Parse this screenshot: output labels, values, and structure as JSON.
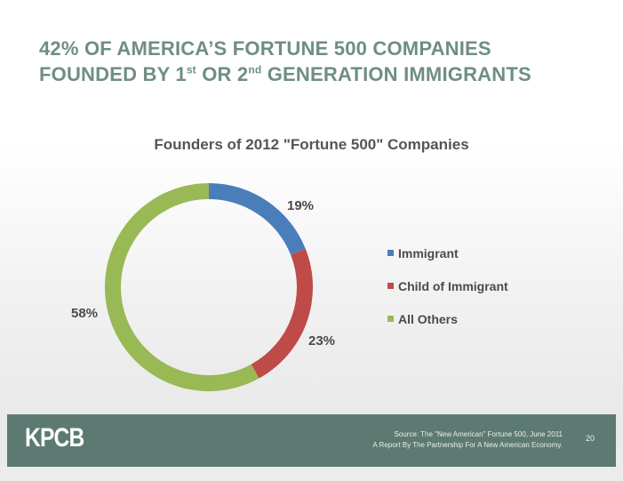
{
  "headline": {
    "line1": "42% OF AMERICA’S FORTUNE 500 COMPANIES",
    "line2_part1": "FOUNDED BY 1",
    "line2_sup1": "st",
    "line2_part2": " OR 2",
    "line2_sup2": "nd",
    "line2_part3": " GENERATION IMMIGRANTS"
  },
  "chart_data": {
    "type": "pie",
    "variant": "doughnut",
    "title": "Founders of 2012 \"Fortune 500\" Companies",
    "categories": [
      "Immigrant",
      "Child of Immigrant",
      "All Others"
    ],
    "values": [
      19,
      23,
      58
    ],
    "labels": [
      "19%",
      "23%",
      "58%"
    ],
    "colors": [
      "#4a7ebb",
      "#be4b48",
      "#98b954"
    ],
    "legend_placement": "right"
  },
  "footer": {
    "logo": "KPCB",
    "source_line1": "Source: The \"New American\" Fortune 500, June 2011",
    "source_line2": "A Report By The Partnership For A New American Economy.",
    "page_number": "20"
  }
}
